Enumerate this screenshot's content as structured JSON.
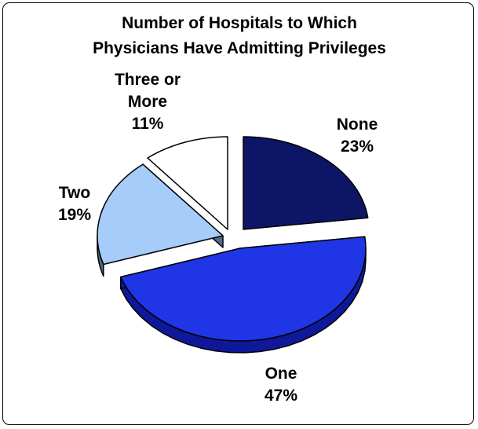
{
  "chart_data": {
    "type": "pie",
    "title_lines": [
      "Number of Hospitals to Which",
      "Physicians Have Admitting Privileges"
    ],
    "slices": [
      {
        "category": "None",
        "value": 23,
        "label_lines": [
          "None",
          "23%"
        ],
        "color": "#0d1566",
        "side_color": "#070a3a"
      },
      {
        "category": "One",
        "value": 47,
        "label_lines": [
          "One",
          "47%"
        ],
        "color": "#1f35e6",
        "side_color": "#10189a"
      },
      {
        "category": "Two",
        "value": 19,
        "label_lines": [
          "Two",
          "19%"
        ],
        "color": "#a6ccfa",
        "side_color": "#4e6a8a"
      },
      {
        "category": "Three or More",
        "value": 11,
        "label_lines": [
          "Three or",
          "More",
          "11%"
        ],
        "color": "#ffffff",
        "side_color": "#a5a5a5"
      }
    ],
    "legend": "none",
    "grid": false
  }
}
